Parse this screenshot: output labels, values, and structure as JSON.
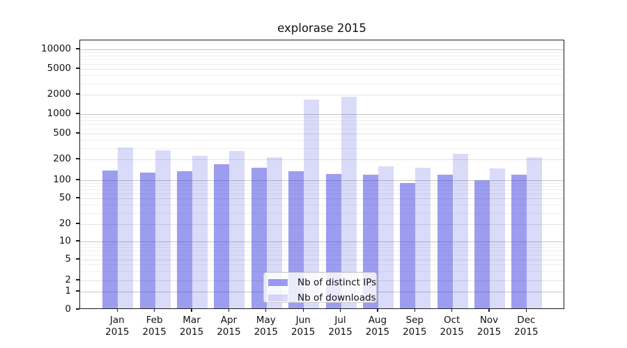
{
  "chart_data": {
    "type": "bar",
    "title": "explorase 2015",
    "categories": [
      {
        "month": "Jan",
        "year": "2015"
      },
      {
        "month": "Feb",
        "year": "2015"
      },
      {
        "month": "Mar",
        "year": "2015"
      },
      {
        "month": "Apr",
        "year": "2015"
      },
      {
        "month": "May",
        "year": "2015"
      },
      {
        "month": "Jun",
        "year": "2015"
      },
      {
        "month": "Jul",
        "year": "2015"
      },
      {
        "month": "Aug",
        "year": "2015"
      },
      {
        "month": "Sep",
        "year": "2015"
      },
      {
        "month": "Oct",
        "year": "2015"
      },
      {
        "month": "Nov",
        "year": "2015"
      },
      {
        "month": "Dec",
        "year": "2015"
      }
    ],
    "series": [
      {
        "name": "Nb of distinct IPs",
        "color": "rgba(60,60,225,0.5)",
        "values": [
          133,
          122,
          130,
          161,
          146,
          130,
          117,
          114,
          85,
          114,
          94,
          116
        ]
      },
      {
        "name": "Nb of downloads",
        "color": "rgba(60,60,225,0.19)",
        "values": [
          288,
          261,
          215,
          259,
          207,
          1590,
          1770,
          152,
          144,
          232,
          143,
          204
        ]
      }
    ],
    "y_ticks": [
      0,
      1,
      2,
      5,
      10,
      20,
      50,
      100,
      200,
      500,
      1000,
      2000,
      5000,
      10000
    ],
    "yscale": "symlog",
    "ylim": [
      0,
      13000
    ],
    "grid": true,
    "legend_position": "lower center",
    "axis_color": "#1a1a1a",
    "gridline_major_color": "#c5c5c5",
    "gridline_mid_color": "#e2e2e2",
    "gridline_minor_color": "#efefef"
  }
}
